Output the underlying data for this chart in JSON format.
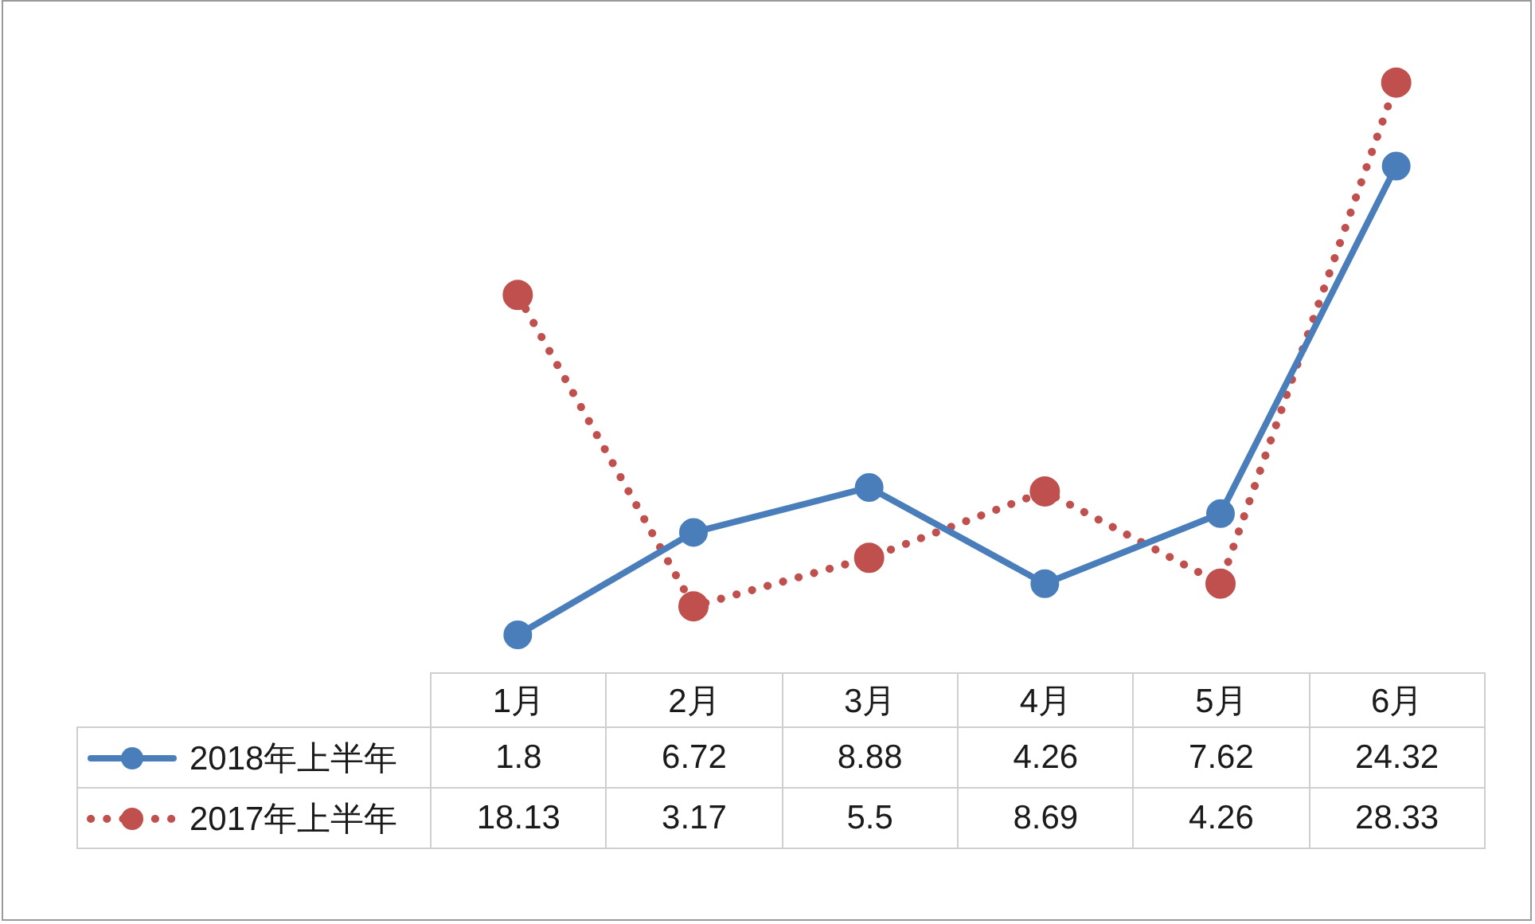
{
  "chart_data": {
    "type": "line",
    "categories": [
      "1月",
      "2月",
      "3月",
      "4月",
      "5月",
      "6月"
    ],
    "series": [
      {
        "name": "2018年上半年",
        "color": "#4a7ebb",
        "line_style": "solid",
        "values": [
          1.8,
          6.72,
          8.88,
          4.26,
          7.62,
          24.32
        ]
      },
      {
        "name": "2017年上半年",
        "color": "#c0504d",
        "line_style": "dotted",
        "values": [
          18.13,
          3.17,
          5.5,
          8.69,
          4.26,
          28.33
        ]
      }
    ],
    "marker": "circle",
    "legend": "bottom left",
    "data_labels": true
  }
}
